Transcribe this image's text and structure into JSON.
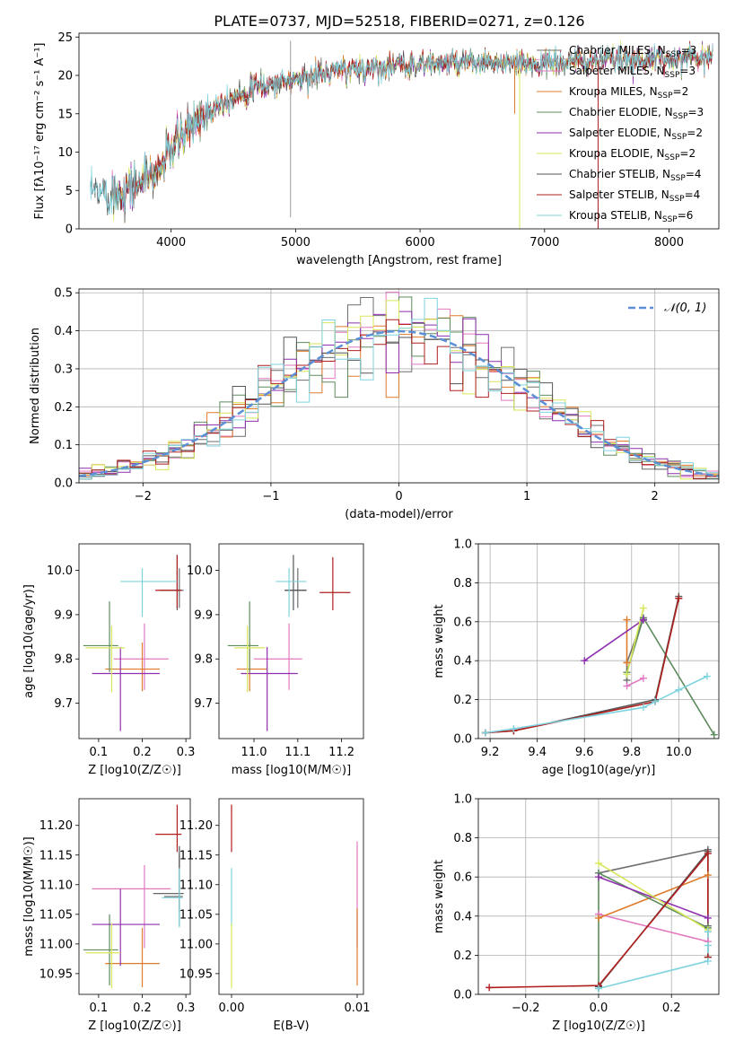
{
  "title": "PLATE=0737, MJD=52518, FIBERID=0271, z=0.126",
  "colors": {
    "Chabrier MILES": "#6f6f6f",
    "Salpeter MILES": "#e377c2",
    "Kroupa MILES": "#e07b2a",
    "Chabrier ELODIE": "#5e8c5e",
    "Salpeter ELODIE": "#8e2fae",
    "Kroupa ELODIE": "#d8e65a",
    "Chabrier STELIB": "#555555",
    "Salpeter STELIB": "#b01e1e",
    "Kroupa STELIB": "#7fd3de",
    "gauss": "#5b8fd6"
  },
  "chart_data": [
    {
      "id": "spectrum",
      "type": "line",
      "xlabel": "wavelength [Angstrom, rest frame]",
      "ylabel": "Flux [fλ10⁻¹⁷ erg cm⁻² s⁻¹ A⁻¹]",
      "xlim": [
        3260,
        8400
      ],
      "ylim": [
        0,
        25.5
      ],
      "xticks": [
        4000,
        5000,
        6000,
        7000,
        8000
      ],
      "yticks": [
        0,
        5,
        10,
        15,
        20,
        25
      ],
      "legend_position": "top-right",
      "series": [
        {
          "name": "Chabrier MILES, N_SSP=3"
        },
        {
          "name": "Salpeter MILES, N_SSP=3"
        },
        {
          "name": "Kroupa MILES, N_SSP=2"
        },
        {
          "name": "Chabrier ELODIE, N_SSP=3"
        },
        {
          "name": "Salpeter ELODIE, N_SSP=2"
        },
        {
          "name": "Kroupa ELODIE, N_SSP=2"
        },
        {
          "name": "Chabrier STELIB, N_SSP=4"
        },
        {
          "name": "Salpeter STELIB, N_SSP=4"
        },
        {
          "name": "Kroupa STELIB, N_SSP=6"
        }
      ],
      "continuum": {
        "x": [
          3350,
          3500,
          3700,
          3900,
          4000,
          4200,
          4400,
          4700,
          5000,
          5300,
          5600,
          6000,
          6500,
          7000,
          7500,
          8000,
          8350
        ],
        "y": [
          4.5,
          4.5,
          5.5,
          7.5,
          10.5,
          14.0,
          16.5,
          18.5,
          19.5,
          20.5,
          21.0,
          21.5,
          21.5,
          21.5,
          22.0,
          22.2,
          22.5
        ]
      }
    },
    {
      "id": "residuals",
      "type": "step",
      "xlabel": "(data-model)/error",
      "ylabel": "Normed distribution",
      "xlim": [
        -2.5,
        2.5
      ],
      "ylim": [
        0,
        0.51
      ],
      "xticks": [
        -2,
        -1,
        0,
        1,
        2
      ],
      "yticks": [
        0.0,
        0.1,
        0.2,
        0.3,
        0.4,
        0.5
      ],
      "grid": true,
      "legend_position": "top-right",
      "gauss_label": "𝒩(0, 1)"
    },
    {
      "id": "age-vs-Z",
      "type": "errorbar",
      "xlabel": "Z [log10(Z/Z☉)]",
      "ylabel": "age  [log10(age/yr)]",
      "xlim": [
        0.055,
        0.31
      ],
      "ylim": [
        9.62,
        10.06
      ],
      "xticks": [
        0.1,
        0.2,
        0.3
      ],
      "yticks": [
        9.7,
        9.8,
        9.9,
        10.0
      ],
      "points": [
        {
          "key": "Chabrier MILES",
          "x": 0.285,
          "y": 9.955,
          "xe": [
            0.005,
            0.01
          ],
          "ye": [
            0.04,
            0.05
          ]
        },
        {
          "key": "Salpeter MILES",
          "x": 0.205,
          "y": 9.8,
          "xe": [
            0.07,
            0.055
          ],
          "ye": [
            0.07,
            0.08
          ]
        },
        {
          "key": "Kroupa MILES",
          "x": 0.2,
          "y": 9.777,
          "xe": [
            0.085,
            0.04
          ],
          "ye": [
            0.05,
            0.06
          ]
        },
        {
          "key": "Chabrier ELODIE",
          "x": 0.125,
          "y": 9.83,
          "xe": [
            0.06,
            0.02
          ],
          "ye": [
            0.06,
            0.1
          ]
        },
        {
          "key": "Salpeter ELODIE",
          "x": 0.15,
          "y": 9.767,
          "xe": [
            0.065,
            0.09
          ],
          "ye": [
            0.13,
            0.06
          ]
        },
        {
          "key": "Kroupa ELODIE",
          "x": 0.13,
          "y": 9.825,
          "xe": [
            0.06,
            0.03
          ],
          "ye": [
            0.1,
            0.05
          ]
        },
        {
          "key": "Chabrier STELIB",
          "x": 0.28,
          "y": 9.955,
          "xe": [
            0.04,
            0.01
          ],
          "ye": [
            0.045,
            0.08
          ]
        },
        {
          "key": "Salpeter STELIB",
          "x": 0.28,
          "y": 9.955,
          "xe": [
            0.05,
            0.01
          ],
          "ye": [
            0.04,
            0.08
          ]
        },
        {
          "key": "Kroupa STELIB",
          "x": 0.2,
          "y": 9.975,
          "xe": [
            0.05,
            0.08
          ],
          "ye": [
            0.08,
            0.03
          ]
        }
      ]
    },
    {
      "id": "age-vs-mass",
      "type": "errorbar",
      "xlabel": "mass [log10(M/M☉)]",
      "ylabel": "",
      "xlim": [
        10.92,
        11.25
      ],
      "ylim": [
        9.62,
        10.06
      ],
      "xticks": [
        11.0,
        11.1,
        11.2
      ],
      "yticks": [
        9.7,
        9.8,
        9.9,
        10.0
      ],
      "points": [
        {
          "key": "Chabrier MILES",
          "x": 11.1,
          "y": 9.955,
          "xe": [
            0.03,
            0.02
          ],
          "ye": [
            0.04,
            0.05
          ]
        },
        {
          "key": "Salpeter MILES",
          "x": 11.08,
          "y": 9.8,
          "xe": [
            0.08,
            0.03
          ],
          "ye": [
            0.07,
            0.08
          ]
        },
        {
          "key": "Kroupa MILES",
          "x": 10.99,
          "y": 9.777,
          "xe": [
            0.03,
            0.04
          ],
          "ye": [
            0.05,
            0.06
          ]
        },
        {
          "key": "Chabrier ELODIE",
          "x": 10.99,
          "y": 9.83,
          "xe": [
            0.05,
            0.02
          ],
          "ye": [
            0.06,
            0.1
          ]
        },
        {
          "key": "Salpeter ELODIE",
          "x": 11.03,
          "y": 9.767,
          "xe": [
            0.06,
            0.07
          ],
          "ye": [
            0.13,
            0.06
          ]
        },
        {
          "key": "Kroupa ELODIE",
          "x": 10.985,
          "y": 9.825,
          "xe": [
            0.03,
            0.04
          ],
          "ye": [
            0.1,
            0.05
          ]
        },
        {
          "key": "Chabrier STELIB",
          "x": 11.09,
          "y": 9.955,
          "xe": [
            0.02,
            0.03
          ],
          "ye": [
            0.045,
            0.08
          ]
        },
        {
          "key": "Salpeter STELIB",
          "x": 11.18,
          "y": 9.95,
          "xe": [
            0.03,
            0.04
          ],
          "ye": [
            0.04,
            0.08
          ]
        },
        {
          "key": "Kroupa STELIB",
          "x": 11.08,
          "y": 9.975,
          "xe": [
            0.03,
            0.04
          ],
          "ye": [
            0.08,
            0.03
          ]
        }
      ]
    },
    {
      "id": "mass-weight-vs-age",
      "type": "line",
      "xlabel": "age  [log10(age/yr)]",
      "ylabel": "mass weight",
      "xlim": [
        9.15,
        10.17
      ],
      "ylim": [
        0,
        1
      ],
      "xticks": [
        9.2,
        9.4,
        9.6,
        9.8,
        10.0
      ],
      "yticks": [
        0.0,
        0.2,
        0.4,
        0.6,
        0.8,
        1.0
      ],
      "grid": true,
      "series": [
        {
          "key": "Chabrier MILES",
          "x": [
            9.78,
            9.78,
            9.85
          ],
          "y": [
            0.3,
            0.39,
            0.62
          ]
        },
        {
          "key": "Salpeter MILES",
          "x": [
            9.78,
            9.85
          ],
          "y": [
            0.27,
            0.31
          ]
        },
        {
          "key": "Kroupa MILES",
          "x": [
            9.78,
            9.78
          ],
          "y": [
            0.39,
            0.61
          ]
        },
        {
          "key": "Chabrier ELODIE",
          "x": [
            9.78,
            9.85,
            10.15
          ],
          "y": [
            0.34,
            0.62,
            0.02
          ]
        },
        {
          "key": "Salpeter ELODIE",
          "x": [
            9.6,
            9.85,
            9.85
          ],
          "y": [
            0.4,
            0.61,
            0.61
          ]
        },
        {
          "key": "Kroupa ELODIE",
          "x": [
            9.78,
            9.85
          ],
          "y": [
            0.33,
            0.67
          ]
        },
        {
          "key": "Chabrier STELIB",
          "x": [
            9.18,
            9.3,
            9.9,
            10.0
          ],
          "y": [
            0.03,
            0.04,
            0.2,
            0.73
          ]
        },
        {
          "key": "Salpeter STELIB",
          "x": [
            9.18,
            9.3,
            9.9,
            10.0
          ],
          "y": [
            0.03,
            0.04,
            0.19,
            0.72
          ]
        },
        {
          "key": "Kroupa STELIB",
          "x": [
            9.18,
            9.3,
            9.85,
            9.9,
            10.0,
            10.12
          ],
          "y": [
            0.03,
            0.05,
            0.16,
            0.19,
            0.25,
            0.32
          ]
        }
      ]
    },
    {
      "id": "mass-vs-Z",
      "type": "errorbar",
      "xlabel": "Z [log10(Z/Z☉)]",
      "ylabel": "mass [log10(M/M☉)]",
      "xlim": [
        0.055,
        0.31
      ],
      "ylim": [
        10.915,
        11.245
      ],
      "xticks": [
        0.1,
        0.2,
        0.3
      ],
      "yticks": [
        10.95,
        11.0,
        11.05,
        11.1,
        11.15,
        11.2
      ],
      "points": [
        {
          "key": "Chabrier MILES",
          "x": 0.285,
          "y": 11.08,
          "xe": [
            0.035,
            0.008
          ],
          "ye": [
            0.05,
            0.07
          ]
        },
        {
          "key": "Salpeter MILES",
          "x": 0.205,
          "y": 11.093,
          "xe": [
            0.12,
            0.06
          ],
          "ye": [
            0.1,
            0.04
          ]
        },
        {
          "key": "Kroupa MILES",
          "x": 0.2,
          "y": 10.967,
          "xe": [
            0.085,
            0.04
          ],
          "ye": [
            0.04,
            0.06
          ]
        },
        {
          "key": "Chabrier ELODIE",
          "x": 0.125,
          "y": 10.99,
          "xe": [
            0.06,
            0.02
          ],
          "ye": [
            0.06,
            0.06
          ]
        },
        {
          "key": "Salpeter ELODIE",
          "x": 0.15,
          "y": 11.033,
          "xe": [
            0.065,
            0.09
          ],
          "ye": [
            0.07,
            0.06
          ]
        },
        {
          "key": "Kroupa ELODIE",
          "x": 0.13,
          "y": 10.985,
          "xe": [
            0.06,
            0.02
          ],
          "ye": [
            0.06,
            0.05
          ]
        },
        {
          "key": "Chabrier STELIB",
          "x": 0.285,
          "y": 11.085,
          "xe": [
            0.06,
            0.01
          ],
          "ye": [
            0.03,
            0.08
          ]
        },
        {
          "key": "Salpeter STELIB",
          "x": 0.28,
          "y": 11.185,
          "xe": [
            0.05,
            0.01
          ],
          "ye": [
            0.03,
            0.05
          ]
        },
        {
          "key": "Kroupa STELIB",
          "x": 0.285,
          "y": 11.078,
          "xe": [
            0.04,
            0.008
          ],
          "ye": [
            0.05,
            0.05
          ]
        }
      ]
    },
    {
      "id": "mass-vs-EBV",
      "type": "errorbar",
      "xlabel": "E(B-V)",
      "ylabel": "",
      "xlim": [
        -0.001,
        0.0105
      ],
      "ylim": [
        10.915,
        11.245
      ],
      "xticks": [
        0.0,
        0.01
      ],
      "yticks": [
        10.95,
        11.0,
        11.05,
        11.1,
        11.15,
        11.2
      ],
      "points": [
        {
          "key": "Salpeter STELIB",
          "x": 0.0,
          "y": 11.185,
          "xe": [
            0,
            0
          ],
          "ye": [
            0.03,
            0.05
          ]
        },
        {
          "key": "Kroupa STELIB",
          "x": 0.0,
          "y": 11.078,
          "xe": [
            0,
            0
          ],
          "ye": [
            0.05,
            0.05
          ]
        },
        {
          "key": "Kroupa ELODIE",
          "x": 0.0,
          "y": 10.985,
          "xe": [
            0,
            0
          ],
          "ye": [
            0.06,
            0.05
          ]
        },
        {
          "key": "Salpeter MILES",
          "x": 0.01,
          "y": 11.093,
          "xe": [
            0,
            0
          ],
          "ye": [
            0.1,
            0.08
          ]
        },
        {
          "key": "Kroupa MILES",
          "x": 0.01,
          "y": 10.99,
          "xe": [
            0,
            0
          ],
          "ye": [
            0.06,
            0.07
          ]
        }
      ]
    },
    {
      "id": "mass-weight-vs-Z",
      "type": "line",
      "xlabel": "Z [log10(Z/Z☉)]",
      "ylabel": "mass weight",
      "xlim": [
        -0.33,
        0.33
      ],
      "ylim": [
        0,
        1
      ],
      "xticks": [
        -0.2,
        0.0,
        0.2
      ],
      "yticks": [
        0.0,
        0.2,
        0.4,
        0.6,
        0.8,
        1.0
      ],
      "grid": true,
      "series": [
        {
          "key": "Chabrier MILES",
          "x": [
            0.0,
            0.3,
            0.3
          ],
          "y": [
            0.62,
            0.74,
            0.35
          ]
        },
        {
          "key": "Salpeter MILES",
          "x": [
            0.0,
            0.3
          ],
          "y": [
            0.41,
            0.27
          ]
        },
        {
          "key": "Kroupa MILES",
          "x": [
            0.0,
            0.3
          ],
          "y": [
            0.39,
            0.61
          ]
        },
        {
          "key": "Chabrier ELODIE",
          "x": [
            0.0,
            0.0,
            0.3
          ],
          "y": [
            0.03,
            0.62,
            0.34
          ]
        },
        {
          "key": "Salpeter ELODIE",
          "x": [
            0.0,
            0.3
          ],
          "y": [
            0.6,
            0.39
          ]
        },
        {
          "key": "Kroupa ELODIE",
          "x": [
            0.0,
            0.3
          ],
          "y": [
            0.67,
            0.33
          ]
        },
        {
          "key": "Chabrier STELIB",
          "x": [
            0.0,
            0.3,
            0.3
          ],
          "y": [
            0.04,
            0.73,
            0.19
          ]
        },
        {
          "key": "Salpeter STELIB",
          "x": [
            -0.3,
            0.0,
            0.3,
            0.3
          ],
          "y": [
            0.035,
            0.045,
            0.72,
            0.19
          ]
        },
        {
          "key": "Kroupa STELIB",
          "x": [
            0.0,
            0.3,
            0.3,
            0.3
          ],
          "y": [
            0.03,
            0.17,
            0.25,
            0.32
          ]
        }
      ]
    }
  ]
}
